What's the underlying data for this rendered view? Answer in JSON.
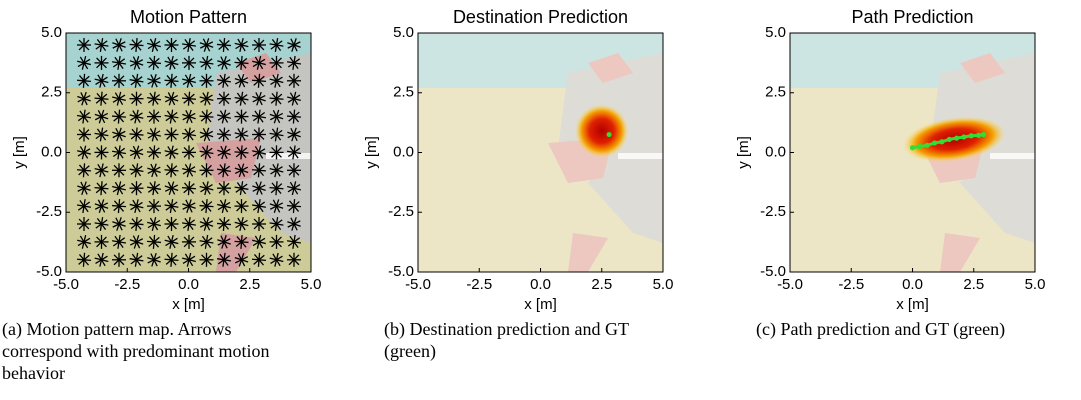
{
  "chart_data": [
    {
      "type": "quiver",
      "title": "Motion Pattern",
      "xlabel": "x [m]",
      "ylabel": "y [m]",
      "xlim": [
        -5,
        5
      ],
      "ylim": [
        -5,
        5
      ],
      "xticks": [
        {
          "value": -5,
          "label": "-5.0"
        },
        {
          "value": -2.5,
          "label": "-2.5"
        },
        {
          "value": 0,
          "label": "0.0"
        },
        {
          "value": 2.5,
          "label": "2.5"
        },
        {
          "value": 5,
          "label": "5.0"
        }
      ],
      "yticks": [
        {
          "value": -5,
          "label": "-5.0"
        },
        {
          "value": -2.5,
          "label": "-2.5"
        },
        {
          "value": 0,
          "label": "0.0"
        },
        {
          "value": 2.5,
          "label": "2.5"
        },
        {
          "value": 5,
          "label": "5.0"
        }
      ],
      "caption": "(a) Motion pattern map. Arrows correspond with predominant motion behavior"
    },
    {
      "type": "scatter",
      "title": "Destination Prediction",
      "xlabel": "x [m]",
      "ylabel": "y [m]",
      "xlim": [
        -5,
        5
      ],
      "ylim": [
        -5,
        5
      ],
      "xticks": [
        {
          "value": -5,
          "label": "-5.0"
        },
        {
          "value": -2.5,
          "label": "-2.5"
        },
        {
          "value": 0,
          "label": "0.0"
        },
        {
          "value": 2.5,
          "label": "2.5"
        },
        {
          "value": 5,
          "label": "5.0"
        }
      ],
      "yticks": [
        {
          "value": -5,
          "label": "-5.0"
        },
        {
          "value": -2.5,
          "label": "-2.5"
        },
        {
          "value": 0,
          "label": "0.0"
        },
        {
          "value": 2.5,
          "label": "2.5"
        },
        {
          "value": 5,
          "label": "5.0"
        }
      ],
      "x": [
        2.8
      ],
      "values": [
        0.75
      ],
      "color": "#33dd33",
      "caption": "(b) Destination prediction and GT (green)"
    },
    {
      "type": "line",
      "title": "Path Prediction",
      "xlabel": "x [m]",
      "ylabel": "y [m]",
      "xlim": [
        -5,
        5
      ],
      "ylim": [
        -5,
        5
      ],
      "xticks": [
        {
          "value": -5,
          "label": "-5.0"
        },
        {
          "value": -2.5,
          "label": "-2.5"
        },
        {
          "value": 0,
          "label": "0.0"
        },
        {
          "value": 2.5,
          "label": "2.5"
        },
        {
          "value": 5,
          "label": "5.0"
        }
      ],
      "yticks": [
        {
          "value": -5,
          "label": "-5.0"
        },
        {
          "value": -2.5,
          "label": "-2.5"
        },
        {
          "value": 0,
          "label": "0.0"
        },
        {
          "value": 2.5,
          "label": "2.5"
        },
        {
          "value": 5,
          "label": "5.0"
        }
      ],
      "x": [
        0,
        0.3,
        0.6,
        0.9,
        1.2,
        1.5,
        1.8,
        2.1,
        2.4,
        2.7,
        2.9
      ],
      "values": [
        0.2,
        0.25,
        0.3,
        0.4,
        0.45,
        0.55,
        0.6,
        0.65,
        0.7,
        0.72,
        0.75
      ],
      "color": "#33dd33",
      "caption": "(c) Path prediction and GT (green)"
    }
  ]
}
